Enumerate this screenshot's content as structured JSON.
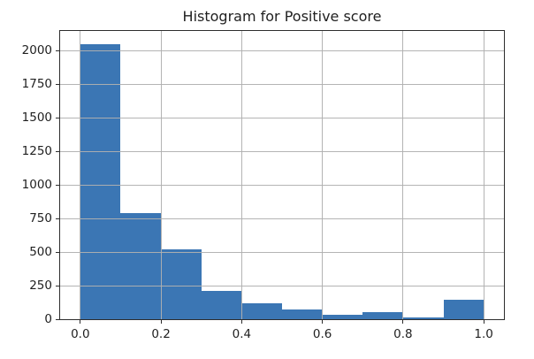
{
  "chart_data": {
    "type": "bar",
    "subtype": "histogram",
    "title": "Histogram for Positive score",
    "xlabel": "",
    "ylabel": "",
    "bin_edges": [
      0.0,
      0.1,
      0.2,
      0.3,
      0.4,
      0.5,
      0.6,
      0.7,
      0.8,
      0.9,
      1.0
    ],
    "counts": [
      2045,
      790,
      520,
      210,
      120,
      75,
      35,
      55,
      15,
      145
    ],
    "xlim": [
      -0.05,
      1.05
    ],
    "ylim": [
      0,
      2147
    ],
    "x_ticks": [
      0.0,
      0.2,
      0.4,
      0.6,
      0.8,
      1.0
    ],
    "x_tick_labels": [
      "0.0",
      "0.2",
      "0.4",
      "0.6",
      "0.8",
      "1.0"
    ],
    "y_ticks": [
      0,
      250,
      500,
      750,
      1000,
      1250,
      1500,
      1750,
      2000
    ],
    "y_tick_labels": [
      "0",
      "250",
      "500",
      "750",
      "1000",
      "1250",
      "1500",
      "1750",
      "2000"
    ],
    "grid": true,
    "grid_on_top_of_bars": true,
    "legend": null,
    "colors": {
      "bar": "#3b76b4",
      "grid": "#b0b0b0",
      "spine": "#2d2d2d",
      "text": "#1f1f1f",
      "background": "#ffffff"
    }
  }
}
